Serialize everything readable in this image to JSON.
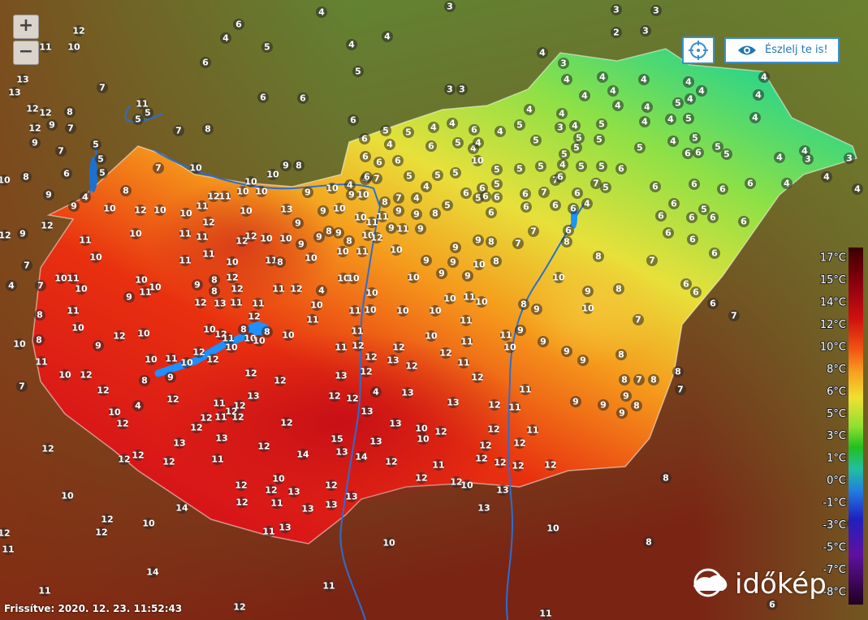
{
  "zoom": {
    "in": "+",
    "out": "−"
  },
  "buttons": {
    "observe": "Észlelj te is!"
  },
  "legend": {
    "labels": [
      "17°C",
      "15°C",
      "14°C",
      "12°C",
      "10°C",
      "8°C",
      "6°C",
      "5°C",
      "3°C",
      "1°C",
      "0°C",
      "-1°C",
      "-3°C",
      "-5°C",
      "-7°C",
      "-8°C"
    ]
  },
  "stations": [
    12,
    11,
    10,
    6,
    4,
    5,
    6,
    4,
    4,
    4,
    3,
    3,
    3,
    2,
    3,
    4,
    3,
    5,
    13,
    13,
    7,
    12,
    12,
    8,
    11,
    5,
    5,
    12,
    9,
    7,
    7,
    8,
    6,
    6,
    6,
    3,
    3,
    9,
    7,
    5,
    5,
    5,
    6,
    10,
    8,
    9,
    8,
    4,
    9,
    10,
    12,
    9,
    12,
    7,
    4,
    7,
    10,
    7,
    10,
    9,
    8,
    10,
    12,
    11,
    11,
    10,
    10,
    9,
    10,
    4,
    4,
    7,
    10,
    9,
    8,
    7,
    4,
    5,
    5,
    6,
    6,
    7,
    6,
    6,
    6,
    4,
    6,
    10,
    12,
    10,
    12,
    10,
    13,
    9,
    9,
    10,
    10,
    11,
    9,
    9,
    8,
    11,
    11,
    12,
    12,
    10,
    10,
    9,
    9,
    8,
    9,
    8,
    10,
    11,
    12,
    9,
    11,
    9,
    9,
    9,
    8,
    11,
    10,
    10,
    10,
    11,
    10,
    11,
    11,
    10,
    11,
    8,
    10,
    10,
    11,
    10,
    9,
    9,
    10,
    8,
    7,
    8,
    7,
    6,
    6,
    10,
    10,
    9,
    8,
    12,
    8,
    12,
    9,
    11,
    11,
    12,
    4,
    10,
    10,
    10,
    10,
    9,
    9,
    10,
    6,
    6,
    6,
    7,
    12,
    13,
    11,
    11,
    10,
    11,
    10,
    10,
    10,
    10,
    11,
    10,
    8,
    9,
    10,
    9,
    8,
    8,
    11,
    12,
    11,
    11,
    7,
    10,
    12,
    10,
    10,
    8,
    10,
    11,
    10,
    11,
    11,
    9,
    10,
    8,
    10,
    9,
    12,
    11,
    10,
    8,
    10,
    11,
    12,
    12,
    12,
    9,
    9,
    9,
    8,
    10,
    11,
    10,
    12,
    12,
    10,
    12,
    13,
    12,
    11,
    11,
    10,
    12,
    8,
    9,
    12,
    12,
    13,
    12,
    12,
    8,
    7,
    8,
    8,
    7,
    12,
    13,
    12,
    12,
    4,
    13,
    11,
    7,
    9,
    12,
    11,
    12,
    12,
    10,
    4,
    12,
    12,
    11,
    12,
    13,
    13,
    12,
    11,
    9,
    9,
    8,
    9,
    12,
    12,
    13,
    10,
    12,
    12,
    11,
    13,
    13,
    12,
    15,
    13,
    10,
    12,
    12,
    12,
    12,
    11,
    14,
    13,
    14,
    12,
    12,
    12,
    11,
    12,
    12,
    12,
    12,
    10,
    12,
    12,
    13,
    12,
    13,
    12,
    12,
    10,
    13,
    8,
    10,
    14,
    12,
    11,
    13,
    13,
    13,
    12,
    10,
    12,
    12,
    11,
    13,
    11,
    10,
    10,
    8,
    14,
    11,
    11,
    12,
    11,
    6,
    6,
    3,
    4,
    4,
    3,
    4,
    4,
    4,
    6,
    6,
    5,
    5,
    6,
    6,
    5,
    5,
    4,
    4,
    4,
    4,
    4,
    4,
    4,
    5,
    4,
    4,
    4,
    4,
    4,
    4,
    4,
    4,
    4,
    4,
    3,
    4,
    5,
    5,
    5,
    5,
    5,
    4,
    5,
    4,
    4,
    4,
    5,
    5,
    6,
    6,
    4,
    6,
    4,
    6,
    4,
    5,
    10,
    5,
    5,
    5,
    5,
    5,
    4,
    5,
    5,
    6,
    7,
    7,
    5,
    6,
    6,
    5,
    5,
    4,
    6,
    6,
    6,
    5,
    5,
    6,
    6,
    6,
    6,
    6,
    6,
    6,
    6,
    5,
    6,
    6,
    8,
    6,
    7,
    6
  ],
  "footer": {
    "updated": "Frissítve: 2020. 12. 23. 11:52:43"
  },
  "logo": {
    "text": "időkép"
  }
}
